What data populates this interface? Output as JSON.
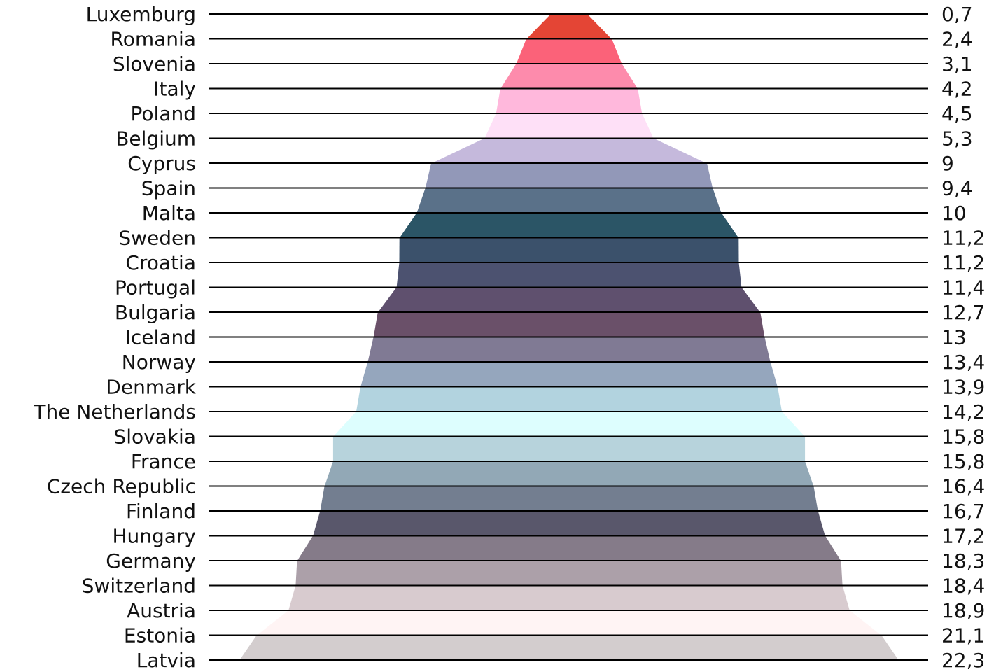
{
  "chart_data": {
    "type": "area",
    "categories": [
      "Luxemburg",
      "Romania",
      "Slovenia",
      "Italy",
      "Poland",
      "Belgium",
      "Cyprus",
      "Spain",
      "Malta",
      "Sweden",
      "Croatia",
      "Portugal",
      "Bulgaria",
      "Iceland",
      "Norway",
      "Denmark",
      "The Netherlands",
      "Slovakia",
      "France",
      "Czech Republic",
      "Finland",
      "Hungary",
      "Germany",
      "Switzerland",
      "Austria",
      "Estonia",
      "Latvia"
    ],
    "values": [
      0.7,
      2.4,
      3.1,
      4.2,
      4.5,
      5.3,
      9,
      9.4,
      10,
      11.2,
      11.21,
      11.4,
      12.7,
      13,
      13.4,
      13.9,
      14.2,
      15.8,
      15.8,
      16.4,
      16.7,
      17.2,
      18.3,
      18.4,
      18.9,
      21.1,
      22.3
    ],
    "value_labels": [
      "0,7",
      "2,4",
      "3,1",
      "4,2",
      "4,5",
      "5,3",
      "9",
      "9,4",
      "10",
      "11,2",
      "11,21",
      "11,4",
      "12,7",
      "13",
      "13,4",
      "13,9",
      "14,2",
      "15,8",
      "15,8",
      "16,4",
      "16,7",
      "17,2",
      "18,3",
      "18,4",
      "18,9",
      "21,1",
      "22,3"
    ],
    "colors": [
      "#e44535",
      "#fb6279",
      "#fd8bac",
      "#ffb8dc",
      "#fee0f7",
      "#c5b9dc",
      "#9298b8",
      "#5a7189",
      "#2b5566",
      "#3b516b",
      "#4c5270",
      "#5f506e",
      "#6a5069",
      "#807a94",
      "#95a6bd",
      "#b2d3df",
      "#ddfefe",
      "#b7d3dc",
      "#92a8b6",
      "#737e90",
      "#59576b",
      "#857b89",
      "#aca0a9",
      "#d8cbcf",
      "#fff4f4",
      "#d3cdce"
    ],
    "title": "",
    "xlabel": "",
    "ylabel": "",
    "grid": false,
    "legend": "none"
  }
}
